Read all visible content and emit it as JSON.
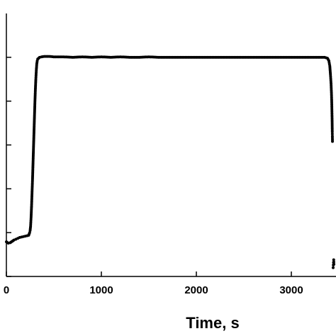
{
  "chart_data": {
    "type": "scatter",
    "xlabel": "Time, s",
    "ylabel": "",
    "xlim": [
      0,
      3450
    ],
    "ylim": [
      0,
      6
    ],
    "x_ticks": [
      0,
      1000,
      2000,
      3000
    ],
    "x_tick_labels": [
      "0",
      "1000",
      "2000",
      "3000"
    ],
    "y_ticks": [
      0,
      1,
      2,
      3,
      4,
      5
    ],
    "y_tick_labels": [
      "",
      "",
      "",
      "",
      "",
      ""
    ],
    "grid": false,
    "marker_color": "#000000",
    "series": [
      {
        "points": [
          [
            0,
            0.79
          ],
          [
            20,
            0.76
          ],
          [
            40,
            0.77
          ],
          [
            60,
            0.8
          ],
          [
            80,
            0.83
          ],
          [
            100,
            0.85
          ],
          [
            120,
            0.87
          ],
          [
            140,
            0.89
          ],
          [
            160,
            0.9
          ],
          [
            180,
            0.91
          ],
          [
            200,
            0.92
          ],
          [
            220,
            0.93
          ],
          [
            235,
            0.94
          ],
          [
            245,
            1.0
          ],
          [
            250,
            1.05
          ],
          [
            255,
            1.15
          ],
          [
            260,
            1.35
          ],
          [
            265,
            1.6
          ],
          [
            270,
            1.9
          ],
          [
            275,
            2.2
          ],
          [
            280,
            2.55
          ],
          [
            285,
            2.9
          ],
          [
            290,
            3.25
          ],
          [
            295,
            3.6
          ],
          [
            300,
            3.95
          ],
          [
            305,
            4.25
          ],
          [
            310,
            4.5
          ],
          [
            315,
            4.7
          ],
          [
            320,
            4.85
          ],
          [
            325,
            4.92
          ],
          [
            330,
            4.96
          ],
          [
            340,
            4.98
          ],
          [
            350,
            5.0
          ],
          [
            370,
            5.01
          ],
          [
            400,
            5.02
          ],
          [
            450,
            5.02
          ],
          [
            500,
            5.01
          ],
          [
            600,
            5.01
          ],
          [
            700,
            5.0
          ],
          [
            800,
            5.01
          ],
          [
            900,
            5.0
          ],
          [
            1000,
            5.01
          ],
          [
            1100,
            5.0
          ],
          [
            1200,
            5.01
          ],
          [
            1300,
            5.0
          ],
          [
            1400,
            5.0
          ],
          [
            1500,
            5.01
          ],
          [
            1600,
            5.0
          ],
          [
            1700,
            5.0
          ],
          [
            1800,
            5.0
          ],
          [
            1900,
            5.0
          ],
          [
            2000,
            5.0
          ],
          [
            2100,
            5.0
          ],
          [
            2200,
            5.0
          ],
          [
            2300,
            5.0
          ],
          [
            2400,
            5.0
          ],
          [
            2500,
            5.0
          ],
          [
            2600,
            5.0
          ],
          [
            2700,
            5.0
          ],
          [
            2800,
            5.0
          ],
          [
            2900,
            5.0
          ],
          [
            3000,
            5.0
          ],
          [
            3100,
            5.0
          ],
          [
            3200,
            5.0
          ],
          [
            3300,
            5.0
          ],
          [
            3350,
            5.0
          ],
          [
            3380,
            4.98
          ],
          [
            3395,
            4.92
          ],
          [
            3405,
            4.8
          ],
          [
            3412,
            4.6
          ],
          [
            3418,
            4.4
          ],
          [
            3422,
            4.2
          ],
          [
            3425,
            4.0
          ],
          [
            3427,
            3.8
          ],
          [
            3429,
            3.6
          ],
          [
            3430,
            3.45
          ],
          [
            3431,
            3.3
          ],
          [
            3432,
            3.2
          ],
          [
            3433,
            3.08
          ],
          [
            3440,
            0.2
          ],
          [
            3442,
            0.26
          ],
          [
            3444,
            0.32
          ],
          [
            3446,
            0.38
          ],
          [
            3448,
            0.28
          ]
        ]
      }
    ]
  }
}
